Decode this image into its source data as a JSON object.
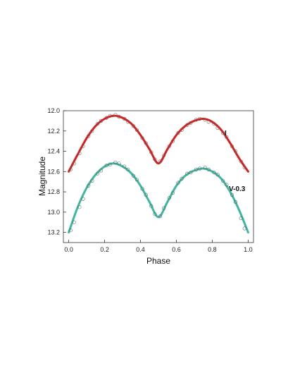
{
  "chart_data": {
    "type": "scatter",
    "xlabel": "Phase",
    "ylabel": "Magnitude",
    "xlim": [
      -0.03,
      1.03
    ],
    "ylim": [
      12.0,
      13.3
    ],
    "y_inverted": true,
    "grid": false,
    "x_ticks": [
      "0.0",
      "0.2",
      "0.4",
      "0.6",
      "0.8",
      "1.0"
    ],
    "y_ticks": [
      "12.0",
      "12.2",
      "12.4",
      "12.6",
      "12.8",
      "13.0",
      "13.2"
    ],
    "series": [
      {
        "name": "I",
        "color": "#dd1c1c",
        "model": {
          "phase": [
            0.0,
            0.05,
            0.1,
            0.15,
            0.2,
            0.25,
            0.3,
            0.35,
            0.4,
            0.45,
            0.5,
            0.55,
            0.6,
            0.65,
            0.7,
            0.75,
            0.8,
            0.85,
            0.9,
            0.95,
            1.0
          ],
          "mag": [
            12.6,
            12.43,
            12.27,
            12.15,
            12.08,
            12.05,
            12.07,
            12.13,
            12.24,
            12.38,
            12.52,
            12.38,
            12.24,
            12.15,
            12.1,
            12.08,
            12.11,
            12.19,
            12.32,
            12.47,
            12.6
          ]
        },
        "observed": {
          "phase": [
            0.01,
            0.03,
            0.06,
            0.08,
            0.11,
            0.13,
            0.16,
            0.18,
            0.21,
            0.23,
            0.26,
            0.28,
            0.31,
            0.33,
            0.36,
            0.38,
            0.41,
            0.43,
            0.46,
            0.48,
            0.51,
            0.53,
            0.56,
            0.58,
            0.61,
            0.63,
            0.66,
            0.68,
            0.71,
            0.73,
            0.76,
            0.78,
            0.81,
            0.83,
            0.86,
            0.88,
            0.91,
            0.93,
            0.96,
            0.98
          ],
          "mag": [
            12.58,
            12.52,
            12.42,
            12.35,
            12.25,
            12.2,
            12.13,
            12.1,
            12.07,
            12.05,
            12.04,
            12.06,
            12.08,
            12.11,
            12.15,
            12.19,
            12.27,
            12.32,
            12.41,
            12.48,
            12.5,
            12.44,
            12.35,
            12.3,
            12.22,
            12.19,
            12.14,
            12.12,
            12.09,
            12.08,
            12.09,
            12.11,
            12.13,
            12.17,
            12.22,
            12.26,
            12.35,
            12.4,
            12.5,
            12.56
          ]
        }
      },
      {
        "name": "V-0.3",
        "color": "#3ab8a0",
        "model": {
          "phase": [
            0.0,
            0.05,
            0.1,
            0.15,
            0.2,
            0.25,
            0.3,
            0.35,
            0.4,
            0.45,
            0.5,
            0.55,
            0.6,
            0.65,
            0.7,
            0.75,
            0.8,
            0.85,
            0.9,
            0.95,
            1.0
          ],
          "mag": [
            13.2,
            12.95,
            12.76,
            12.63,
            12.55,
            12.52,
            12.55,
            12.62,
            12.74,
            12.9,
            13.05,
            12.9,
            12.74,
            12.64,
            12.59,
            12.57,
            12.6,
            12.67,
            12.8,
            12.98,
            13.2
          ]
        },
        "observed": {
          "phase": [
            0.01,
            0.03,
            0.06,
            0.08,
            0.11,
            0.13,
            0.16,
            0.18,
            0.21,
            0.23,
            0.26,
            0.28,
            0.31,
            0.33,
            0.36,
            0.38,
            0.41,
            0.43,
            0.46,
            0.48,
            0.51,
            0.53,
            0.56,
            0.58,
            0.61,
            0.63,
            0.66,
            0.68,
            0.71,
            0.73,
            0.76,
            0.78,
            0.81,
            0.83,
            0.86,
            0.88,
            0.91,
            0.93,
            0.96,
            0.98
          ],
          "mag": [
            13.18,
            13.1,
            12.95,
            12.87,
            12.74,
            12.69,
            12.62,
            12.59,
            12.54,
            12.53,
            12.51,
            12.52,
            12.55,
            12.58,
            12.64,
            12.68,
            12.77,
            12.83,
            12.94,
            13.02,
            13.04,
            12.96,
            12.86,
            12.81,
            12.71,
            12.67,
            12.62,
            12.61,
            12.58,
            12.57,
            12.56,
            12.58,
            12.61,
            12.63,
            12.69,
            12.73,
            12.83,
            12.9,
            13.06,
            13.16
          ]
        }
      }
    ]
  }
}
